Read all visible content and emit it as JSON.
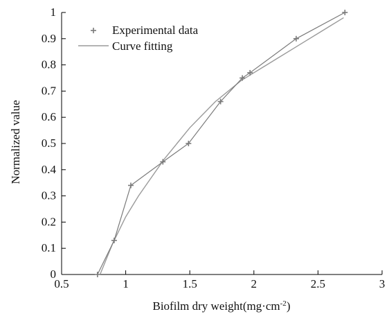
{
  "chart_data": {
    "type": "scatter",
    "title": "",
    "xlabel": "Biofilm dry weight(mg·cm",
    "xlabel_superscript": "-2",
    "xlabel_suffix": ")",
    "ylabel": "Normalized value",
    "xlim": [
      0.5,
      3
    ],
    "ylim": [
      0,
      1
    ],
    "xticks": [
      "0.5",
      "1",
      "1.5",
      "2",
      "2.5",
      "3"
    ],
    "yticks": [
      "0",
      "0.1",
      "0.2",
      "0.3",
      "0.4",
      "0.5",
      "0.6",
      "0.7",
      "0.8",
      "0.9",
      "1"
    ],
    "grid": false,
    "legend_position": "top-left",
    "colors": {
      "points": "#7a7a7a",
      "fit": "#9a9a9a",
      "axis": "#000000"
    },
    "series": [
      {
        "name": "Experimental data",
        "kind": "markers-with-line",
        "marker": "plus",
        "x": [
          0.78,
          0.91,
          1.04,
          1.29,
          1.49,
          1.74,
          1.91,
          1.97,
          2.33,
          2.71
        ],
        "y": [
          0.0,
          0.13,
          0.34,
          0.43,
          0.5,
          0.66,
          0.75,
          0.77,
          0.9,
          1.0
        ]
      },
      {
        "name": "Curve fitting",
        "kind": "line",
        "x": [
          0.8,
          0.9,
          1.0,
          1.1,
          1.2,
          1.3,
          1.4,
          1.5,
          1.6,
          1.7,
          1.8,
          1.9,
          2.0,
          2.1,
          2.2,
          2.3,
          2.4,
          2.5,
          2.6,
          2.7
        ],
        "y": [
          0.0,
          0.12,
          0.22,
          0.3,
          0.37,
          0.44,
          0.5,
          0.56,
          0.61,
          0.66,
          0.7,
          0.74,
          0.77,
          0.8,
          0.83,
          0.86,
          0.89,
          0.92,
          0.95,
          0.98
        ]
      }
    ]
  }
}
